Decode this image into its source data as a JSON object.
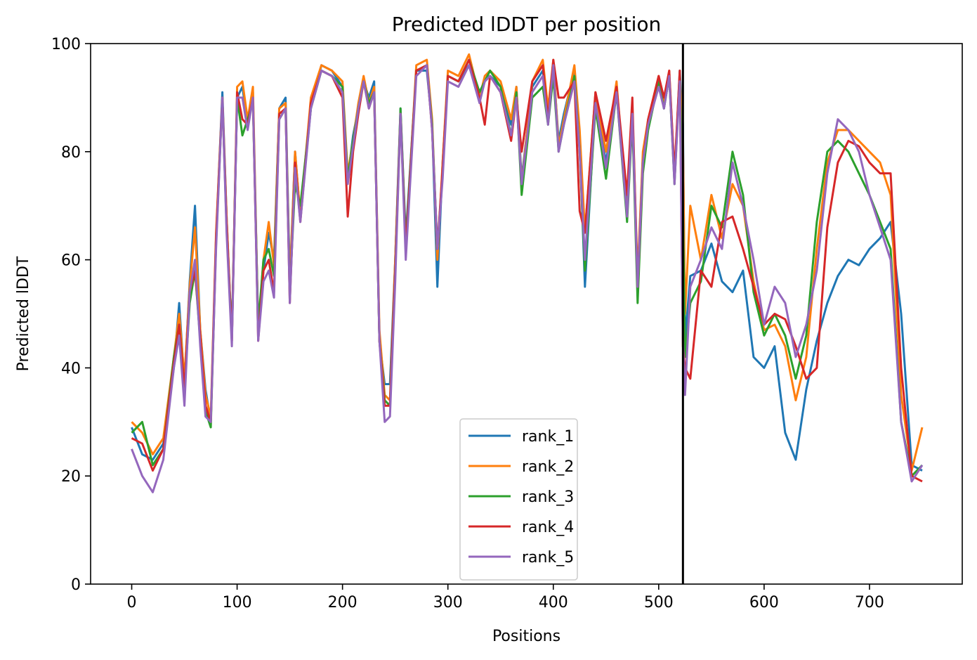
{
  "chart_data": {
    "type": "line",
    "title": "Predicted lDDT per position",
    "xlabel": "Positions",
    "ylabel": "Predicted lDDT",
    "xlim": [
      -39,
      788
    ],
    "ylim": [
      0,
      100
    ],
    "xticks": [
      0,
      100,
      200,
      300,
      400,
      500,
      600,
      700
    ],
    "yticks": [
      0,
      20,
      40,
      60,
      80,
      100
    ],
    "vline_x": 523,
    "grid": false,
    "legend_placement": "lower center",
    "x": [
      0,
      10,
      20,
      30,
      40,
      45,
      50,
      55,
      60,
      65,
      70,
      75,
      80,
      86,
      90,
      95,
      100,
      105,
      110,
      115,
      120,
      125,
      130,
      135,
      140,
      146,
      150,
      155,
      160,
      170,
      180,
      190,
      200,
      205,
      210,
      215,
      220,
      225,
      230,
      235,
      240,
      245,
      250,
      255,
      260,
      270,
      280,
      285,
      290,
      295,
      300,
      310,
      320,
      330,
      335,
      340,
      350,
      360,
      365,
      370,
      380,
      390,
      395,
      400,
      405,
      410,
      420,
      425,
      430,
      440,
      450,
      460,
      470,
      475,
      480,
      485,
      490,
      500,
      505,
      510,
      515,
      520,
      523,
      525,
      530,
      540,
      550,
      560,
      570,
      580,
      590,
      600,
      610,
      620,
      630,
      640,
      650,
      660,
      670,
      680,
      690,
      700,
      710,
      720,
      730,
      740,
      750
    ],
    "series": [
      {
        "name": "rank_1",
        "color": "#1f77b4",
        "values": [
          29,
          24,
          23,
          26,
          40,
          52,
          37,
          56,
          70,
          47,
          36,
          30,
          64,
          91,
          68,
          45,
          90,
          92,
          85,
          91,
          47,
          58,
          65,
          60,
          88,
          90,
          56,
          80,
          68,
          88,
          96,
          95,
          92,
          75,
          83,
          88,
          93,
          90,
          93,
          45,
          37,
          37,
          60,
          88,
          64,
          95,
          95,
          85,
          55,
          78,
          94,
          93,
          96,
          91,
          93,
          94,
          92,
          85,
          92,
          75,
          92,
          95,
          87,
          96,
          82,
          87,
          95,
          82,
          55,
          90,
          78,
          92,
          70,
          88,
          55,
          78,
          85,
          93,
          88,
          94,
          75,
          95,
          85,
          45,
          57,
          58,
          63,
          56,
          54,
          58,
          42,
          40,
          44,
          28,
          23,
          36,
          45,
          52,
          57,
          60,
          59,
          62,
          64,
          67,
          50,
          22,
          21
        ]
      },
      {
        "name": "rank_2",
        "color": "#ff7f0e",
        "values": [
          30,
          28,
          24,
          27,
          42,
          50,
          38,
          55,
          66,
          47,
          35,
          31,
          65,
          90,
          68,
          45,
          92,
          93,
          86,
          92,
          47,
          60,
          67,
          59,
          88,
          89,
          55,
          80,
          68,
          90,
          96,
          95,
          93,
          76,
          82,
          89,
          94,
          89,
          92,
          47,
          35,
          34,
          60,
          87,
          62,
          96,
          97,
          86,
          60,
          78,
          95,
          94,
          98,
          90,
          94,
          95,
          93,
          86,
          92,
          74,
          93,
          97,
          88,
          97,
          81,
          86,
          96,
          84,
          65,
          91,
          80,
          93,
          68,
          88,
          57,
          80,
          86,
          94,
          89,
          95,
          76,
          94,
          82,
          50,
          70,
          60,
          72,
          64,
          74,
          70,
          56,
          47,
          48,
          44,
          34,
          42,
          62,
          78,
          84,
          84,
          82,
          80,
          78,
          72,
          35,
          21,
          29
        ]
      },
      {
        "name": "rank_3",
        "color": "#2ca02c",
        "values": [
          28,
          30,
          22,
          25,
          42,
          48,
          36,
          52,
          58,
          45,
          32,
          29,
          63,
          90,
          66,
          46,
          90,
          83,
          86,
          89,
          48,
          60,
          62,
          57,
          86,
          88,
          54,
          74,
          70,
          88,
          95,
          94,
          92,
          75,
          82,
          88,
          93,
          89,
          91,
          45,
          34,
          33,
          58,
          88,
          63,
          95,
          96,
          85,
          62,
          76,
          94,
          93,
          97,
          91,
          93,
          95,
          92,
          83,
          91,
          72,
          90,
          92,
          85,
          94,
          80,
          85,
          94,
          80,
          58,
          88,
          75,
          91,
          67,
          86,
          52,
          76,
          84,
          93,
          88,
          94,
          74,
          94,
          70,
          42,
          52,
          56,
          70,
          66,
          80,
          72,
          54,
          46,
          50,
          46,
          38,
          46,
          67,
          80,
          82,
          80,
          76,
          72,
          67,
          62,
          30,
          20,
          22
        ]
      },
      {
        "name": "rank_4",
        "color": "#d62728",
        "values": [
          27,
          26,
          21,
          25,
          41,
          48,
          36,
          54,
          58,
          46,
          33,
          30,
          64,
          90,
          67,
          45,
          91,
          86,
          85,
          90,
          45,
          58,
          60,
          54,
          87,
          88,
          52,
          78,
          67,
          89,
          95,
          94,
          90,
          68,
          80,
          87,
          93,
          88,
          91,
          45,
          33,
          33,
          58,
          87,
          62,
          95,
          96,
          84,
          62,
          77,
          94,
          93,
          97,
          90,
          85,
          94,
          91,
          82,
          90,
          80,
          93,
          96,
          86,
          97,
          90,
          90,
          93,
          69,
          65,
          91,
          82,
          92,
          72,
          90,
          55,
          78,
          86,
          94,
          90,
          95,
          76,
          95,
          44,
          40,
          38,
          58,
          55,
          67,
          68,
          62,
          55,
          48,
          50,
          49,
          44,
          38,
          40,
          66,
          78,
          82,
          81,
          78,
          76,
          76,
          40,
          20,
          19
        ]
      },
      {
        "name": "rank_5",
        "color": "#9467bd",
        "values": [
          25,
          20,
          17,
          23,
          40,
          46,
          33,
          54,
          60,
          44,
          31,
          30,
          62,
          90,
          65,
          44,
          90,
          90,
          84,
          90,
          45,
          56,
          58,
          53,
          86,
          88,
          52,
          77,
          67,
          88,
          95,
          94,
          91,
          74,
          81,
          88,
          93,
          88,
          91,
          45,
          30,
          31,
          56,
          87,
          60,
          94,
          96,
          84,
          62,
          75,
          93,
          92,
          96,
          89,
          93,
          94,
          91,
          83,
          90,
          74,
          91,
          94,
          85,
          96,
          80,
          85,
          93,
          80,
          60,
          89,
          77,
          91,
          68,
          87,
          55,
          78,
          85,
          92,
          88,
          94,
          74,
          93,
          45,
          35,
          55,
          60,
          66,
          62,
          78,
          70,
          60,
          48,
          55,
          52,
          42,
          48,
          58,
          76,
          86,
          84,
          80,
          72,
          66,
          60,
          30,
          19,
          22
        ]
      }
    ]
  }
}
